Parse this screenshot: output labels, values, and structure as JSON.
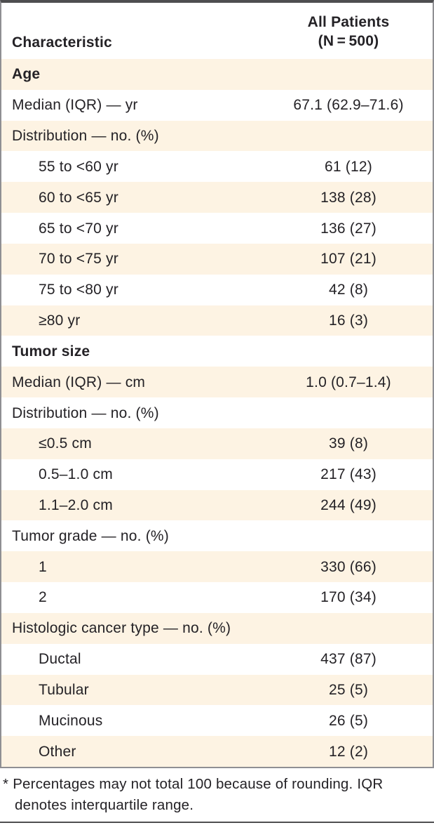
{
  "colors": {
    "row_shade": "#fdf3e3",
    "text": "#242226",
    "border_gray": "#8f8f93",
    "rule_dark": "#4e4e50"
  },
  "table": {
    "header": {
      "characteristic": "Characteristic",
      "all_patients_line1": "All Patients",
      "all_patients_line2": "(N = 500)"
    },
    "rows": [
      {
        "label": "Age",
        "value": "",
        "section": true,
        "indent": false
      },
      {
        "label": "Median (IQR) — yr",
        "value": "67.1 (62.9–71.6)",
        "section": false,
        "indent": false
      },
      {
        "label": "Distribution — no. (%)",
        "value": "",
        "section": false,
        "indent": false
      },
      {
        "label": "55 to <60 yr",
        "value": "61 (12)",
        "section": false,
        "indent": true
      },
      {
        "label": "60 to <65 yr",
        "value": "138 (28)",
        "section": false,
        "indent": true
      },
      {
        "label": "65 to <70 yr",
        "value": "136 (27)",
        "section": false,
        "indent": true
      },
      {
        "label": "70 to <75 yr",
        "value": "107 (21)",
        "section": false,
        "indent": true
      },
      {
        "label": "75 to <80 yr",
        "value": "42 (8)",
        "section": false,
        "indent": true
      },
      {
        "label": "≥80 yr",
        "value": "16 (3)",
        "section": false,
        "indent": true
      },
      {
        "label": "Tumor size",
        "value": "",
        "section": true,
        "indent": false
      },
      {
        "label": "Median (IQR) — cm",
        "value": "1.0 (0.7–1.4)",
        "section": false,
        "indent": false
      },
      {
        "label": "Distribution — no. (%)",
        "value": "",
        "section": false,
        "indent": false
      },
      {
        "label": "≤0.5 cm",
        "value": "39 (8)",
        "section": false,
        "indent": true
      },
      {
        "label": "0.5–1.0 cm",
        "value": "217 (43)",
        "section": false,
        "indent": true
      },
      {
        "label": "1.1–2.0 cm",
        "value": "244 (49)",
        "section": false,
        "indent": true
      },
      {
        "label": "Tumor grade — no. (%)",
        "value": "",
        "section": false,
        "indent": false
      },
      {
        "label": "1",
        "value": "330 (66)",
        "section": false,
        "indent": true
      },
      {
        "label": "2",
        "value": "170 (34)",
        "section": false,
        "indent": true
      },
      {
        "label": "Histologic cancer type — no. (%)",
        "value": "",
        "section": false,
        "indent": false
      },
      {
        "label": "Ductal",
        "value": "437 (87)",
        "section": false,
        "indent": true
      },
      {
        "label": "Tubular",
        "value": "25 (5)",
        "section": false,
        "indent": true
      },
      {
        "label": "Mucinous",
        "value": "26 (5)",
        "section": false,
        "indent": true
      },
      {
        "label": "Other",
        "value": "12 (2)",
        "section": false,
        "indent": true
      }
    ],
    "footnote": {
      "marker": "*",
      "text": "Percentages may not total 100 because of rounding. IQR denotes interquartile range."
    }
  }
}
